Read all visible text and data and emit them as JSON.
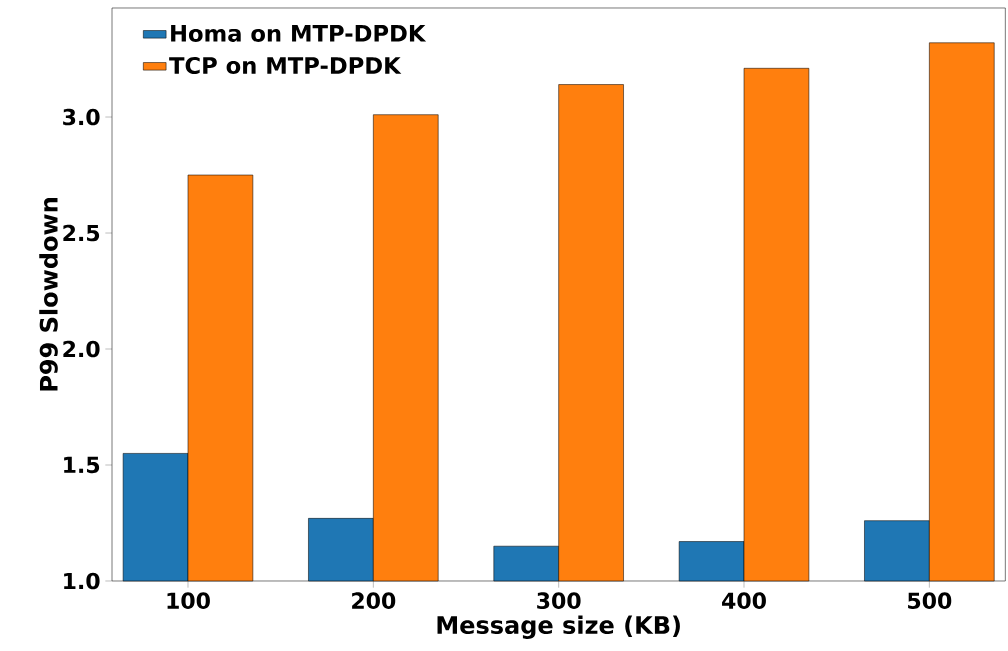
{
  "chart_data": {
    "type": "bar",
    "xlabel": "Message size (KB)",
    "ylabel": "P99 Slowdown",
    "categories": [
      "100",
      "200",
      "300",
      "400",
      "500"
    ],
    "series": [
      {
        "name": "Homa on MTP-DPDK",
        "color": "#1f77b4",
        "values": [
          1.55,
          1.27,
          1.15,
          1.17,
          1.26
        ]
      },
      {
        "name": "TCP on MTP-DPDK",
        "color": "#ff7f0e",
        "values": [
          2.75,
          3.01,
          3.14,
          3.21,
          3.32
        ]
      }
    ],
    "ylim": [
      1.0,
      3.47
    ],
    "yticks": [
      {
        "value": 1.0,
        "label": "1.0"
      },
      {
        "value": 1.5,
        "label": "1.5"
      },
      {
        "value": 2.0,
        "label": "2.0"
      },
      {
        "value": 2.5,
        "label": "2.5"
      },
      {
        "value": 3.0,
        "label": "3.0"
      }
    ],
    "legend": "top left",
    "grid": false
  }
}
